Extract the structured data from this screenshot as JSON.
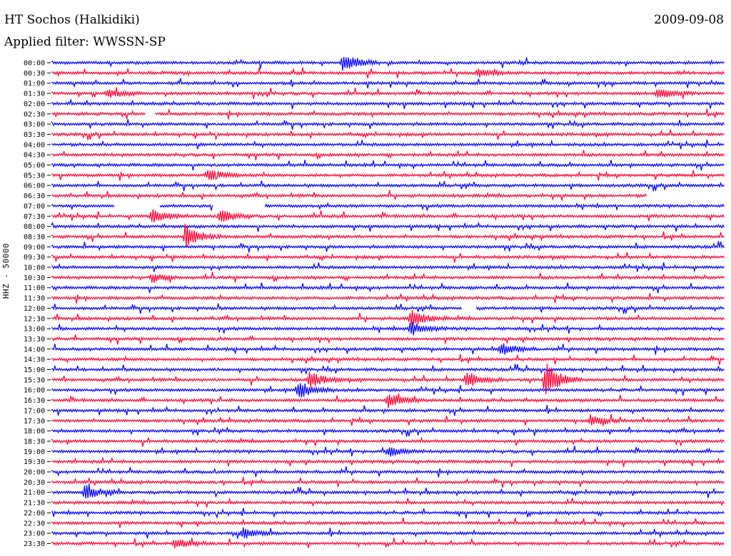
{
  "header": {
    "station": "HT Sochos (Halkidiki)",
    "date": "2009-09-08",
    "filter": "Applied filter: WWSSN-SP"
  },
  "chart_data": {
    "type": "line",
    "ylabel": "HHZ - 50000",
    "rows": [
      "00:00",
      "00:30",
      "01:00",
      "01:30",
      "02:00",
      "02:30",
      "03:00",
      "03:30",
      "04:00",
      "04:30",
      "05:00",
      "05:30",
      "06:00",
      "06:30",
      "07:00",
      "07:30",
      "08:00",
      "08:30",
      "09:00",
      "09:30",
      "10:00",
      "10:30",
      "11:00",
      "11:30",
      "12:00",
      "12:30",
      "13:00",
      "13:30",
      "14:00",
      "14:30",
      "15:00",
      "15:30",
      "16:00",
      "16:30",
      "17:00",
      "17:30",
      "18:00",
      "18:30",
      "19:00",
      "19:30",
      "20:00",
      "20:30",
      "21:00",
      "21:30",
      "22:00",
      "22:30",
      "23:00",
      "23:30"
    ],
    "trace_colors": [
      "#0000ff",
      "#ff0033"
    ],
    "events": [
      {
        "row": 0,
        "minute": 13,
        "amplitude": 14
      },
      {
        "row": 1,
        "minute": 19,
        "amplitude": 6
      },
      {
        "row": 3,
        "minute": 2.5,
        "amplitude": 7
      },
      {
        "row": 3,
        "minute": 27,
        "amplitude": 9
      },
      {
        "row": 11,
        "minute": 7,
        "amplitude": 9
      },
      {
        "row": 15,
        "minute": 4.5,
        "amplitude": 10
      },
      {
        "row": 15,
        "minute": 7.5,
        "amplitude": 9
      },
      {
        "row": 17,
        "minute": 6,
        "amplitude": 16
      },
      {
        "row": 21,
        "minute": 4.5,
        "amplitude": 6
      },
      {
        "row": 25,
        "minute": 16,
        "amplitude": 12
      },
      {
        "row": 26,
        "minute": 16,
        "amplitude": 9
      },
      {
        "row": 28,
        "minute": 20,
        "amplitude": 9
      },
      {
        "row": 31,
        "minute": 11.5,
        "amplitude": 11
      },
      {
        "row": 31,
        "minute": 18.5,
        "amplitude": 12
      },
      {
        "row": 31,
        "minute": 22,
        "amplitude": 26
      },
      {
        "row": 32,
        "minute": 11,
        "amplitude": 12
      },
      {
        "row": 33,
        "minute": 15,
        "amplitude": 10
      },
      {
        "row": 35,
        "minute": 24,
        "amplitude": 8
      },
      {
        "row": 38,
        "minute": 15,
        "amplitude": 7
      },
      {
        "row": 42,
        "minute": 1.5,
        "amplitude": 10
      },
      {
        "row": 46,
        "minute": 8.5,
        "amplitude": 8
      },
      {
        "row": 47,
        "minute": 5.5,
        "amplitude": 7
      }
    ],
    "gaps": [
      {
        "row": 5,
        "start_minute": 4.2,
        "end_minute": 4.6
      },
      {
        "row": 13,
        "start_minute": 26.5,
        "end_minute": 30
      },
      {
        "row": 14,
        "start_minute": 2.8,
        "end_minute": 4.8
      },
      {
        "row": 14,
        "start_minute": 7.2,
        "end_minute": 9.5
      },
      {
        "row": 24,
        "start_minute": 18.3,
        "end_minute": 18.9
      }
    ]
  }
}
